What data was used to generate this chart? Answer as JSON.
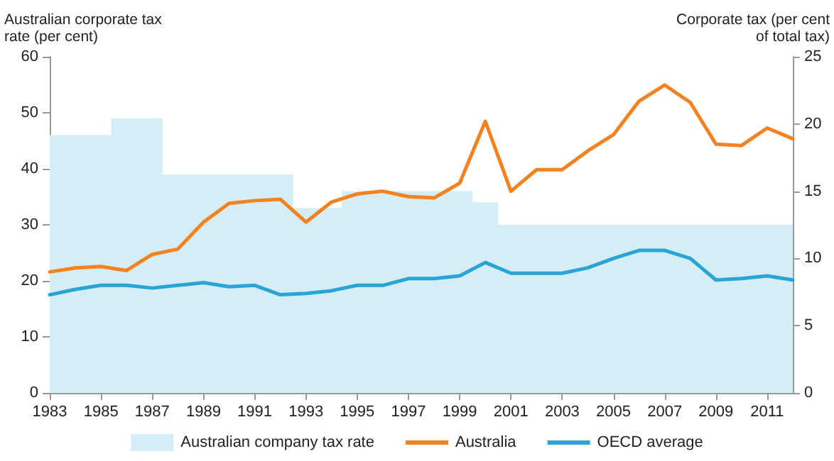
{
  "chart_data": {
    "type": "line",
    "ylabel": "Australian corporate tax rate (per cent)",
    "y2label": "Corporate tax (per cent of total tax)",
    "xlim": [
      1983,
      2012
    ],
    "xticks": [
      1983,
      1985,
      1987,
      1989,
      1991,
      1993,
      1995,
      1997,
      1999,
      2001,
      2003,
      2005,
      2007,
      2009,
      2011
    ],
    "ylim": [
      0,
      60
    ],
    "yticks": [
      0,
      10,
      20,
      30,
      40,
      50,
      60
    ],
    "y2lim": [
      0,
      25
    ],
    "y2ticks": [
      0,
      5,
      10,
      15,
      20,
      25
    ],
    "grid": false,
    "legend": "bottom",
    "marker": "none",
    "line_style": "solid",
    "series": [
      {
        "name": "Australian company tax rate",
        "type": "area",
        "color": "#d5edf4",
        "x": [
          1983,
          1985.4,
          1987.4,
          1992.5,
          1994.4,
          1999.5,
          2000.5,
          2012
        ],
        "values": [
          46,
          49,
          39,
          33,
          36,
          34,
          30,
          30
        ]
      },
      {
        "name": "Australia",
        "axis": "y2",
        "color": "#f58220",
        "x": [
          1983,
          1984,
          1985,
          1986,
          1987,
          1988,
          1989,
          1990,
          1991,
          1992,
          1993,
          1994,
          1995,
          1996,
          1997,
          1998,
          1999,
          2000,
          2001,
          2002,
          2003,
          2004,
          2005,
          2006,
          2007,
          2008,
          2009,
          2010,
          2011,
          2012
        ],
        "values": [
          9.0,
          9.3,
          9.4,
          9.1,
          10.3,
          10.7,
          12.7,
          14.1,
          14.3,
          14.4,
          12.7,
          14.2,
          14.8,
          15.0,
          14.6,
          14.5,
          15.6,
          20.2,
          15.0,
          16.6,
          16.6,
          18.0,
          19.2,
          21.7,
          22.9,
          21.6,
          18.5,
          18.4,
          19.7,
          18.9
        ]
      },
      {
        "name": "OECD average",
        "axis": "y2",
        "color": "#2aa4d6",
        "x": [
          1983,
          1984,
          1985,
          1986,
          1987,
          1988,
          1989,
          1990,
          1991,
          1992,
          1993,
          1994,
          1995,
          1996,
          1997,
          1998,
          1999,
          2000,
          2001,
          2002,
          2003,
          2004,
          2005,
          2006,
          2007,
          2008,
          2009,
          2010,
          2011,
          2012
        ],
        "values": [
          7.3,
          7.7,
          8.0,
          8.0,
          7.8,
          8.0,
          8.2,
          7.9,
          8.0,
          7.3,
          7.4,
          7.6,
          8.0,
          8.0,
          8.5,
          8.5,
          8.7,
          9.7,
          8.9,
          8.9,
          8.9,
          9.3,
          10.0,
          10.6,
          10.6,
          10.0,
          8.4,
          8.5,
          8.7,
          8.4
        ]
      }
    ]
  }
}
